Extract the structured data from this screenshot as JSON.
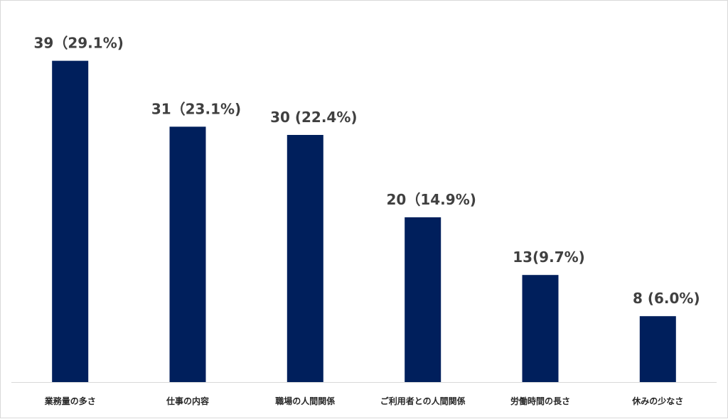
{
  "chart_data": {
    "type": "bar",
    "categories": [
      "業務量の多さ",
      "仕事の内容",
      "職場の人間関係",
      "ご利用者との人間関係",
      "労働時間の長さ",
      "休みの少なさ"
    ],
    "values": [
      39,
      31,
      30,
      20,
      13,
      8
    ],
    "data_labels": [
      "39（29.1%)",
      "31（23.1%)",
      "30 (22.4%)",
      "20（14.9%)",
      "13(9.7%)",
      "8 (6.0%)"
    ],
    "percentages": [
      29.1,
      23.1,
      22.4,
      14.9,
      9.7,
      6.0
    ],
    "title": "",
    "xlabel": "",
    "ylabel": "",
    "ylim": [
      0,
      44
    ],
    "grid": false,
    "legend": "none",
    "bar_color": "#001f5c",
    "axis_color": "#d9d9d9"
  }
}
